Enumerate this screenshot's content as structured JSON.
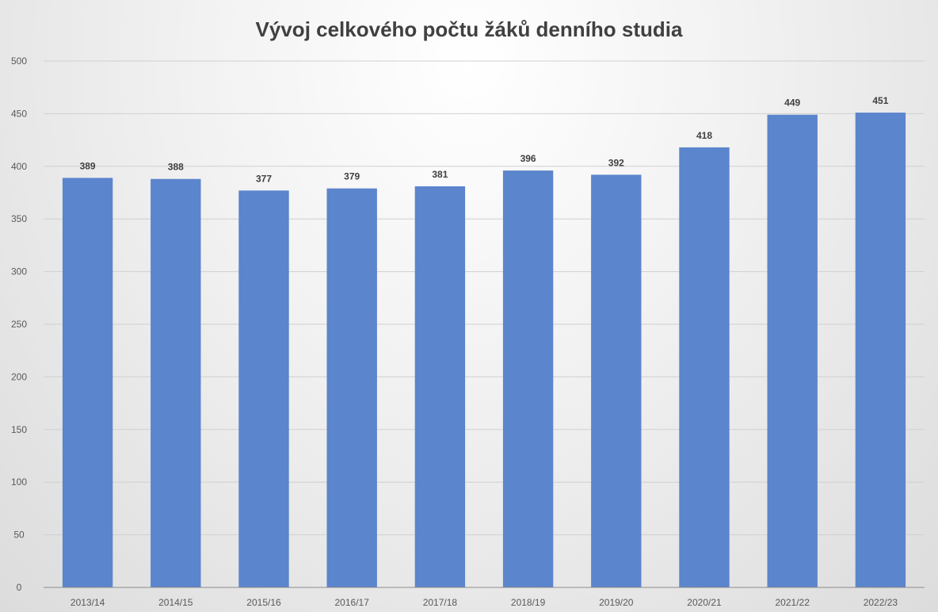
{
  "chart_data": {
    "type": "bar",
    "title": "Vývoj celkového počtu žáků denního studia",
    "xlabel": "",
    "ylabel": "",
    "categories": [
      "2013/14",
      "2014/15",
      "2015/16",
      "2016/17",
      "2017/18",
      "2018/19",
      "2019/20",
      "2020/21",
      "2021/22",
      "2022/23"
    ],
    "values": [
      389,
      388,
      377,
      379,
      381,
      396,
      392,
      418,
      449,
      451
    ],
    "ylim": [
      0,
      500
    ],
    "yticks": [
      0,
      50,
      100,
      150,
      200,
      250,
      300,
      350,
      400,
      450,
      500
    ],
    "grid": true,
    "legend": "none",
    "data_labels": true,
    "bar_color": "#5b85cc",
    "gridline_color": "#d0d0d0",
    "axis_color": "#8c8c8c"
  }
}
